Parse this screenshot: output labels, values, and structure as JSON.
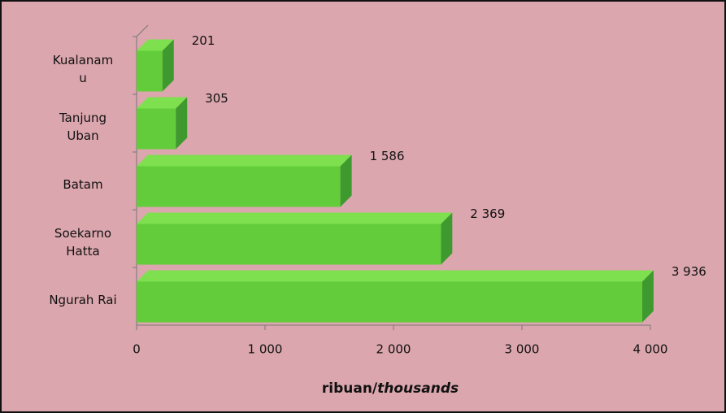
{
  "chart_data": {
    "type": "bar",
    "orientation": "horizontal",
    "categories": [
      "Kualanam\nu",
      "Tanjung\nUban",
      "Batam",
      "Soekarno\nHatta",
      "Ngurah Rai"
    ],
    "values": [
      201,
      305,
      1586,
      2369,
      3936
    ],
    "value_labels": [
      "201",
      "305",
      "1 586",
      "2 369",
      "3 936"
    ],
    "color": "#62cc3a",
    "xlim": [
      0,
      4000
    ],
    "xticks": [
      0,
      {
        "value": 1000,
        "label": "1 000"
      },
      {
        "value": 2000,
        "label": "2 000"
      },
      {
        "value": 3000,
        "label": "3 000"
      },
      {
        "value": 4000,
        "label": "4 000"
      }
    ],
    "xlabel": [
      "ribuan/",
      "thousands"
    ]
  }
}
